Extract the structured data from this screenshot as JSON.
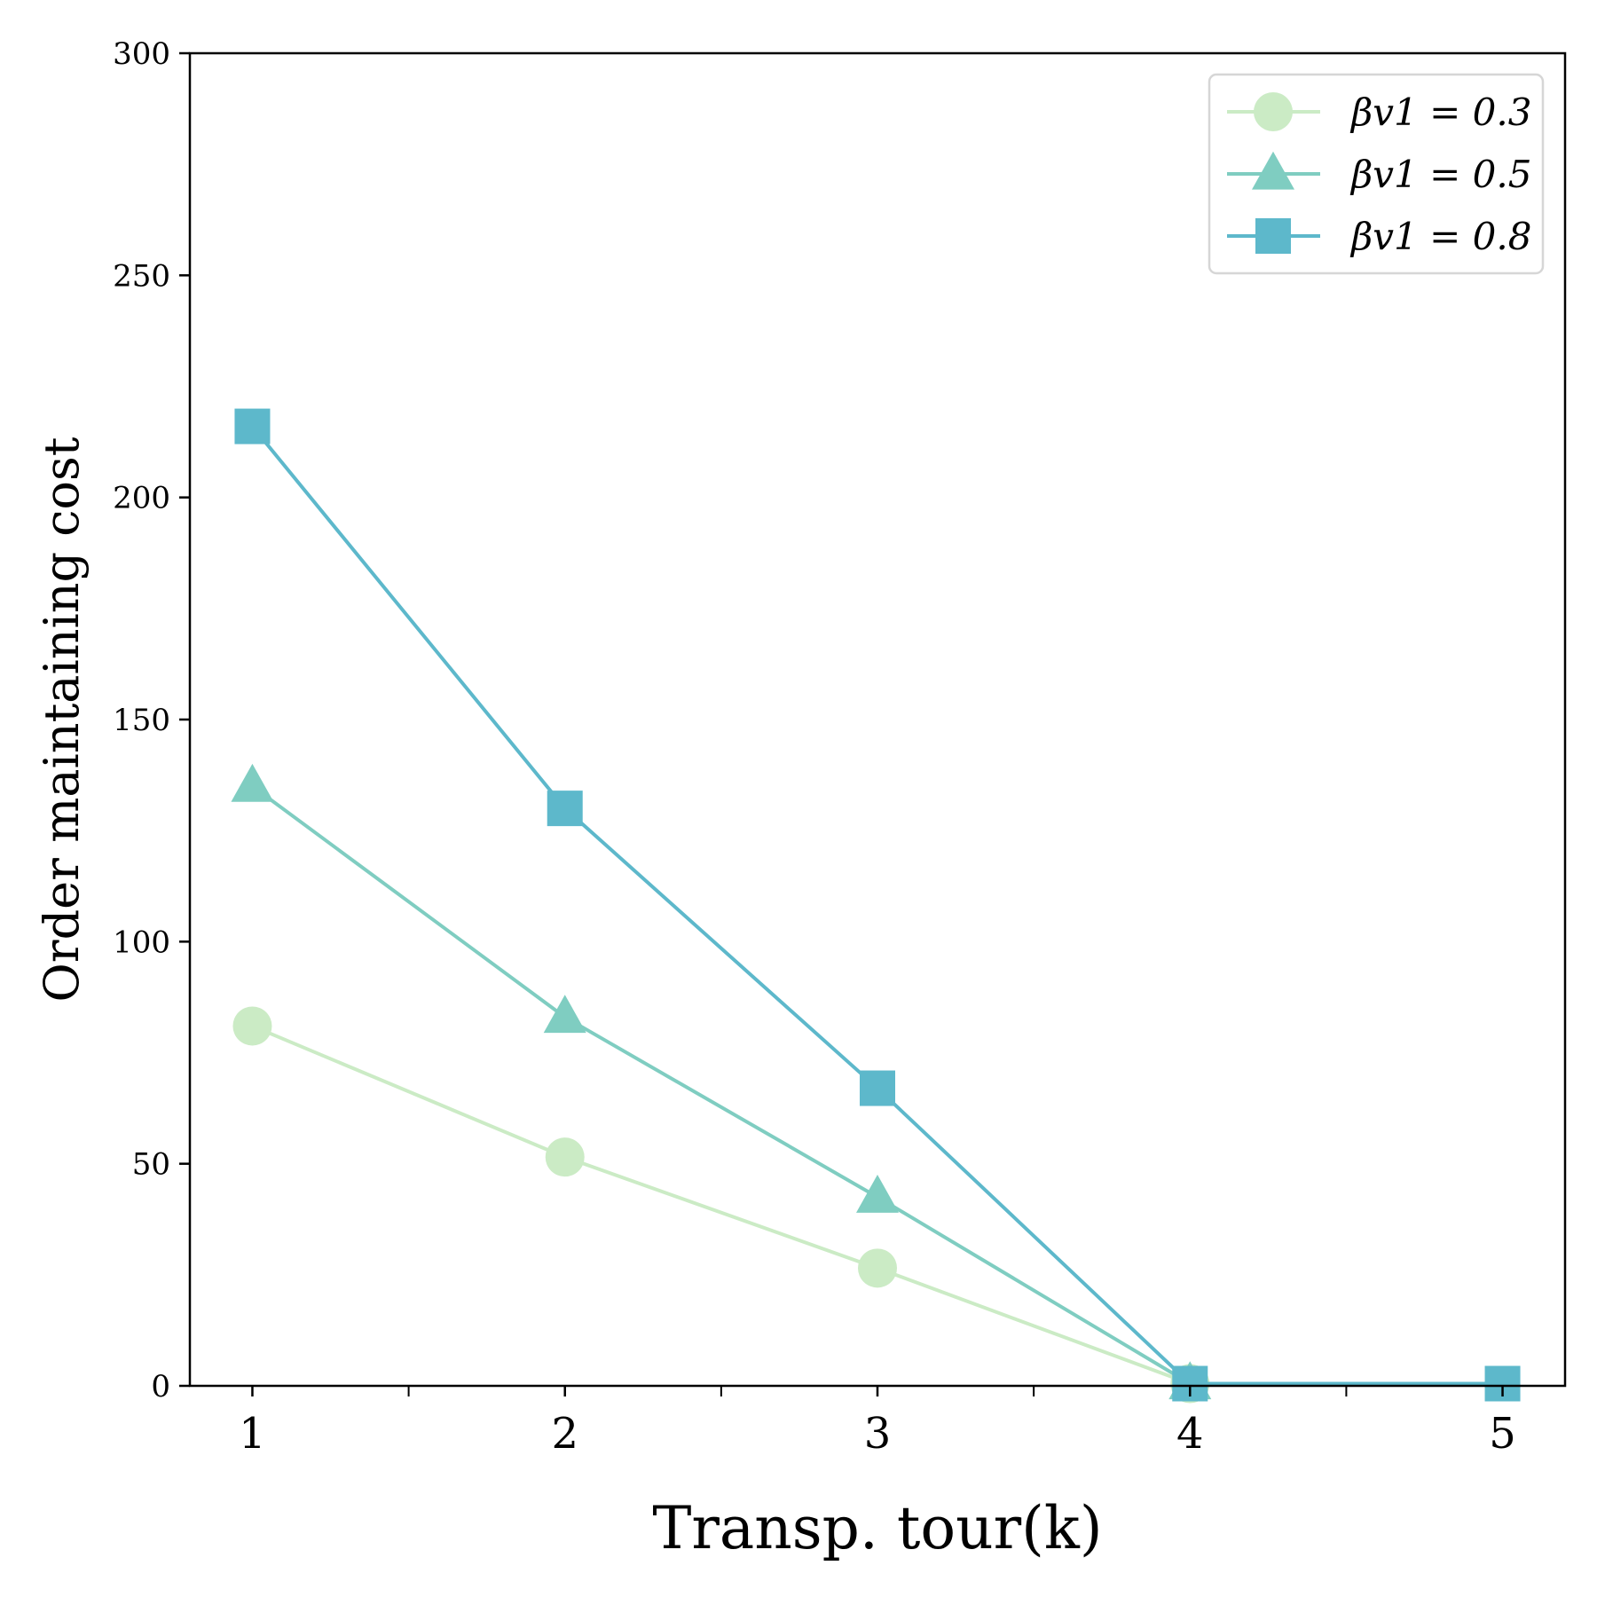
{
  "chart_data": {
    "type": "line",
    "title": "",
    "xlabel": "Transp. tour(k)",
    "ylabel": "Order maintaining cost",
    "x": [
      1,
      2,
      3,
      4,
      5
    ],
    "xlim": [
      0.8,
      5.2
    ],
    "ylim": [
      0,
      300
    ],
    "xticks": [
      1,
      2,
      3,
      4,
      5
    ],
    "xtick_labels": [
      "1",
      "2",
      "3",
      "4",
      "5"
    ],
    "x_minor_ticks": [
      1.5,
      2.5,
      3.5,
      4.5
    ],
    "yticks": [
      0,
      50,
      100,
      150,
      200,
      250,
      300
    ],
    "ytick_labels": [
      "0",
      "50",
      "100",
      "150",
      "200",
      "250",
      "300"
    ],
    "grid": false,
    "legend_position": "top-right",
    "series": [
      {
        "name": "βv1 = 0.3",
        "color": "#cbebc5",
        "marker": "circle",
        "values": [
          81,
          51.5,
          26.5,
          0.5,
          null
        ]
      },
      {
        "name": "βv1 = 0.5",
        "color": "#7fcdc1",
        "marker": "triangle",
        "values": [
          135,
          83,
          42.5,
          0.5,
          null
        ]
      },
      {
        "name": "βv1 = 0.8",
        "color": "#5db8cb",
        "marker": "square",
        "values": [
          216,
          130,
          67,
          0.5,
          0.5
        ]
      }
    ]
  }
}
